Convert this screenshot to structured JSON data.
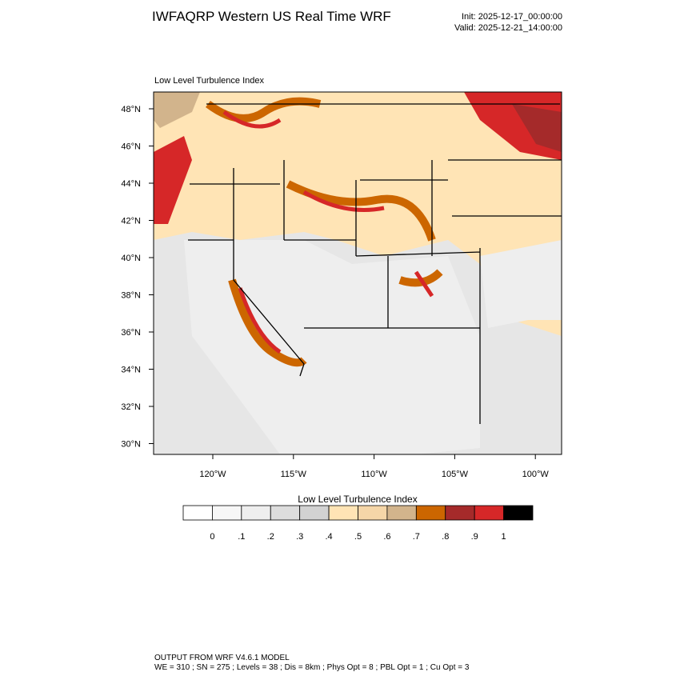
{
  "header": {
    "title": "IWFAQRP Western US Real Time WRF",
    "init": "Init: 2025-12-17_00:00:00",
    "valid": "Valid: 2025-12-21_14:00:00"
  },
  "map": {
    "title": "Low Level Turbulence Index",
    "lat_labels": [
      "48°N",
      "46°N",
      "44°N",
      "42°N",
      "40°N",
      "38°N",
      "36°N",
      "34°N",
      "32°N",
      "30°N"
    ],
    "lon_labels": [
      "120°W",
      "115°W",
      "110°W",
      "105°W",
      "100°W"
    ]
  },
  "colorbar": {
    "title": "Low Level Turbulence Index",
    "colors": [
      "#ffffff",
      "#f7f7f7",
      "#eeeeee",
      "#dddddd",
      "#d2d2d2",
      "#ffe4b5",
      "#f5d6a8",
      "#d2b48c",
      "#cc6600",
      "#a52a2a",
      "#d62728",
      "#000000"
    ],
    "labels": [
      "0",
      ".1",
      ".2",
      ".3",
      ".4",
      ".5",
      ".6",
      ".7",
      ".8",
      ".9",
      "1"
    ]
  },
  "footer": {
    "line1": "OUTPUT FROM WRF V4.6.1 MODEL",
    "line2": "WE = 310 ; SN = 275 ; Levels = 38 ; Dis = 8km ; Phys Opt = 8 ; PBL Opt = 1 ; Cu Opt = 3"
  }
}
